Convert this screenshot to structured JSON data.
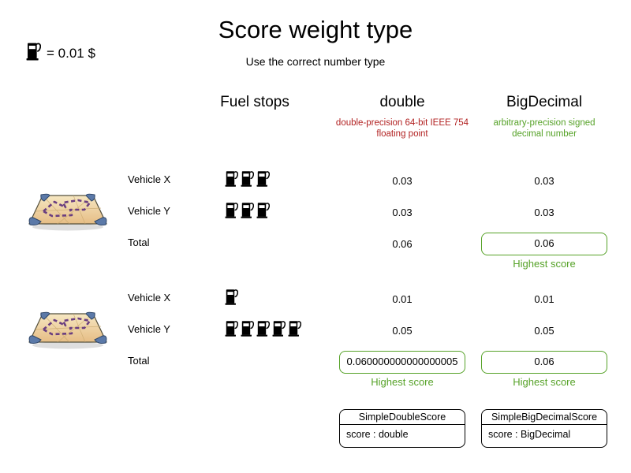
{
  "title": "Score weight type",
  "subtitle": "Use the correct number type",
  "legend": {
    "icon": "fuel-pump-icon",
    "text": "= 0.01 $"
  },
  "columns": {
    "fuel_stops": {
      "label": "Fuel stops"
    },
    "double": {
      "label": "double",
      "description": "double-precision 64-bit IEEE 754 floating point"
    },
    "bigdecimal": {
      "label": "BigDecimal",
      "description": "arbitrary-precision signed decimal number"
    }
  },
  "colors": {
    "double_description_red": "#b22222",
    "bigdecimal_description_green": "#56a228",
    "highest_score_green": "#56a228"
  },
  "groups": [
    {
      "rows": [
        {
          "label": "Vehicle X",
          "fuel_stops": 3,
          "double": "0.03",
          "bigdecimal": "0.03"
        },
        {
          "label": "Vehicle Y",
          "fuel_stops": 3,
          "double": "0.03",
          "bigdecimal": "0.03"
        },
        {
          "label": "Total",
          "double": "0.06",
          "bigdecimal": "0.06",
          "bigdecimal_note": "Highest score"
        }
      ]
    },
    {
      "rows": [
        {
          "label": "Vehicle X",
          "fuel_stops": 1,
          "double": "0.01",
          "bigdecimal": "0.01"
        },
        {
          "label": "Vehicle Y",
          "fuel_stops": 5,
          "double": "0.05",
          "bigdecimal": "0.05"
        },
        {
          "label": "Total",
          "double": "0.060000000000000005",
          "bigdecimal": "0.06",
          "double_note": "Highest score",
          "bigdecimal_note": "Highest score"
        }
      ]
    }
  ],
  "uml_classes": [
    {
      "name": "SimpleDoubleScore",
      "attribute": "score : double"
    },
    {
      "name": "SimpleBigDecimalScore",
      "attribute": "score : BigDecimal"
    }
  ]
}
